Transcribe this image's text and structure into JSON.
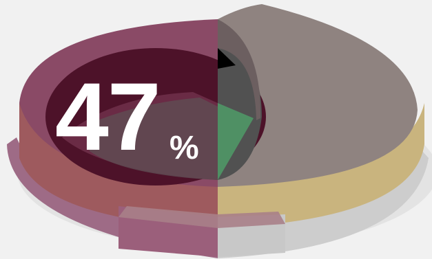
{
  "chart_data": {
    "type": "pie",
    "title": "",
    "display_value": "47",
    "display_unit": "%",
    "values": [
      47,
      53
    ],
    "colors": {
      "highlight_slice": "#8a4a66",
      "remaining_slice": "#8f8380",
      "rim_left": "#9e5a5e",
      "rim_right": "#c9b47e",
      "inner_green": "#4f9064",
      "background": "#f1f1f1"
    }
  }
}
